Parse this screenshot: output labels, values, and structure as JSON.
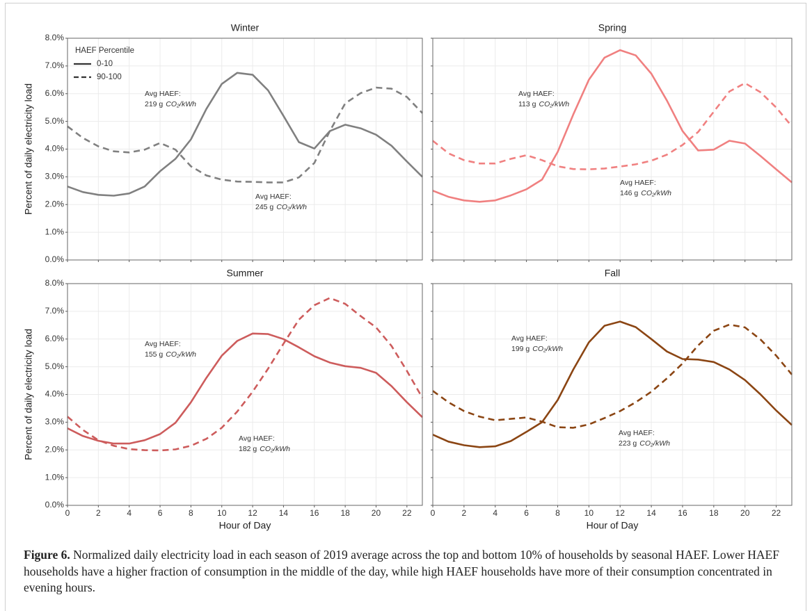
{
  "chart_data": [
    {
      "type": "line",
      "title": "Winter",
      "ylabel": "Percent of daily electricity load",
      "x": [
        0,
        1,
        2,
        3,
        4,
        5,
        6,
        7,
        8,
        9,
        10,
        11,
        12,
        13,
        14,
        15,
        16,
        17,
        18,
        19,
        20,
        21,
        22,
        23
      ],
      "series": [
        {
          "name": "0-10",
          "color": "#808080",
          "dash": "solid",
          "values": [
            2.65,
            2.45,
            2.35,
            2.32,
            2.4,
            2.65,
            3.2,
            3.65,
            4.35,
            5.45,
            6.35,
            6.75,
            6.68,
            6.12,
            5.2,
            4.25,
            4.02,
            4.65,
            4.88,
            4.75,
            4.52,
            4.12,
            3.55,
            3.0
          ]
        },
        {
          "name": "90-100",
          "color": "#808080",
          "dash": "dashed",
          "values": [
            4.82,
            4.4,
            4.1,
            3.92,
            3.88,
            3.98,
            4.22,
            3.98,
            3.38,
            3.05,
            2.9,
            2.83,
            2.82,
            2.8,
            2.8,
            2.98,
            3.5,
            4.65,
            5.65,
            6.02,
            6.22,
            6.18,
            5.88,
            5.3
          ]
        }
      ],
      "legend": {
        "title": "HAEF Percentile",
        "color": "#333333",
        "position": "upper left"
      },
      "annotations": [
        {
          "label": "Avg HAEF:",
          "text": "219 g",
          "unit": "CO₂/kWh"
        },
        {
          "label": "Avg HAEF:",
          "text": "245 g",
          "unit": "CO₂/kWh"
        }
      ],
      "xlim": [
        0,
        23
      ],
      "ylim": [
        0,
        8
      ],
      "xticks": [
        0,
        2,
        4,
        6,
        8,
        10,
        12,
        14,
        16,
        18,
        20,
        22
      ],
      "yticks": [
        {
          "value": 0,
          "label": "0.0%"
        },
        {
          "value": 1,
          "label": "1.0%"
        },
        {
          "value": 2,
          "label": "2.0%"
        },
        {
          "value": 3,
          "label": "3.0%"
        },
        {
          "value": 4,
          "label": "4.0%"
        },
        {
          "value": 5,
          "label": "5.0%"
        },
        {
          "value": 6,
          "label": "6.0%"
        },
        {
          "value": 7,
          "label": "7.0%"
        },
        {
          "value": 8,
          "label": "8.0%"
        }
      ],
      "show_xtick_labels": false,
      "show_ytick_labels": true,
      "grid": true
    },
    {
      "type": "line",
      "title": "Spring",
      "x": [
        0,
        1,
        2,
        3,
        4,
        5,
        6,
        7,
        8,
        9,
        10,
        11,
        12,
        13,
        14,
        15,
        16,
        17,
        18,
        19,
        20,
        21,
        22,
        23
      ],
      "series": [
        {
          "name": "0-10",
          "color": "#f08080",
          "dash": "solid",
          "values": [
            2.5,
            2.28,
            2.15,
            2.1,
            2.15,
            2.33,
            2.55,
            2.9,
            3.9,
            5.25,
            6.5,
            7.3,
            7.57,
            7.38,
            6.72,
            5.75,
            4.65,
            3.95,
            3.98,
            4.3,
            4.2,
            3.75,
            3.27,
            2.8
          ]
        },
        {
          "name": "90-100",
          "color": "#f08080",
          "dash": "dashed",
          "values": [
            4.3,
            3.85,
            3.6,
            3.48,
            3.48,
            3.65,
            3.78,
            3.6,
            3.38,
            3.28,
            3.27,
            3.3,
            3.37,
            3.45,
            3.58,
            3.8,
            4.15,
            4.62,
            5.35,
            6.08,
            6.38,
            6.05,
            5.5,
            4.82
          ]
        }
      ],
      "annotations": [
        {
          "label": "Avg HAEF:",
          "text": "113 g",
          "unit": "CO₂/kWh"
        },
        {
          "label": "Avg HAEF:",
          "text": "146 g",
          "unit": "CO₂/kWh"
        }
      ],
      "xlim": [
        0,
        23
      ],
      "ylim": [
        0,
        8
      ],
      "xticks": [
        0,
        2,
        4,
        6,
        8,
        10,
        12,
        14,
        16,
        18,
        20,
        22
      ],
      "yticks": [
        0,
        1,
        2,
        3,
        4,
        5,
        6,
        7,
        8
      ],
      "show_xtick_labels": false,
      "show_ytick_labels": false,
      "grid": true
    },
    {
      "type": "line",
      "title": "Summer",
      "ylabel": "Percent of daily electricity load",
      "xlabel": "Hour of Day",
      "x": [
        0,
        1,
        2,
        3,
        4,
        5,
        6,
        7,
        8,
        9,
        10,
        11,
        12,
        13,
        14,
        15,
        16,
        17,
        18,
        19,
        20,
        21,
        22,
        23
      ],
      "series": [
        {
          "name": "0-10",
          "color": "#cd5c5c",
          "dash": "solid",
          "values": [
            2.78,
            2.5,
            2.33,
            2.23,
            2.23,
            2.35,
            2.57,
            2.98,
            3.72,
            4.6,
            5.4,
            5.93,
            6.2,
            6.18,
            6.0,
            5.7,
            5.38,
            5.15,
            5.02,
            4.96,
            4.78,
            4.3,
            3.72,
            3.18
          ]
        },
        {
          "name": "90-100",
          "color": "#cd5c5c",
          "dash": "dashed",
          "values": [
            3.2,
            2.72,
            2.35,
            2.15,
            2.03,
            1.99,
            1.98,
            2.02,
            2.15,
            2.4,
            2.8,
            3.38,
            4.1,
            4.93,
            5.83,
            6.7,
            7.22,
            7.48,
            7.27,
            6.83,
            6.42,
            5.75,
            4.85,
            3.88
          ]
        }
      ],
      "annotations": [
        {
          "label": "Avg HAEF:",
          "text": "155 g",
          "unit": "CO₂/kWh"
        },
        {
          "label": "Avg HAEF:",
          "text": "182 g",
          "unit": "CO₂/kWh"
        }
      ],
      "xlim": [
        0,
        23
      ],
      "ylim": [
        0,
        8
      ],
      "xticks": [
        0,
        2,
        4,
        6,
        8,
        10,
        12,
        14,
        16,
        18,
        20,
        22
      ],
      "yticks": [
        {
          "value": 0,
          "label": "0.0%"
        },
        {
          "value": 1,
          "label": "1.0%"
        },
        {
          "value": 2,
          "label": "2.0%"
        },
        {
          "value": 3,
          "label": "3.0%"
        },
        {
          "value": 4,
          "label": "4.0%"
        },
        {
          "value": 5,
          "label": "5.0%"
        },
        {
          "value": 6,
          "label": "6.0%"
        },
        {
          "value": 7,
          "label": "7.0%"
        },
        {
          "value": 8,
          "label": "8.0%"
        }
      ],
      "show_xtick_labels": true,
      "show_ytick_labels": true,
      "grid": true
    },
    {
      "type": "line",
      "title": "Fall",
      "xlabel": "Hour of Day",
      "x": [
        0,
        1,
        2,
        3,
        4,
        5,
        6,
        7,
        8,
        9,
        10,
        11,
        12,
        13,
        14,
        15,
        16,
        17,
        18,
        19,
        20,
        21,
        22,
        23
      ],
      "series": [
        {
          "name": "0-10",
          "color": "#8b4513",
          "dash": "solid",
          "values": [
            2.55,
            2.3,
            2.17,
            2.1,
            2.13,
            2.32,
            2.65,
            3.0,
            3.8,
            4.9,
            5.88,
            6.48,
            6.63,
            6.43,
            6.0,
            5.55,
            5.28,
            5.26,
            5.17,
            4.9,
            4.52,
            4.0,
            3.42,
            2.9
          ]
        },
        {
          "name": "90-100",
          "color": "#8b4513",
          "dash": "dashed",
          "values": [
            4.13,
            3.72,
            3.4,
            3.2,
            3.07,
            3.12,
            3.17,
            3.02,
            2.82,
            2.8,
            2.92,
            3.15,
            3.4,
            3.72,
            4.1,
            4.58,
            5.12,
            5.77,
            6.3,
            6.52,
            6.42,
            5.98,
            5.4,
            4.72
          ]
        }
      ],
      "annotations": [
        {
          "label": "Avg HAEF:",
          "text": "199 g",
          "unit": "CO₂/kWh"
        },
        {
          "label": "Avg HAEF:",
          "text": "223 g",
          "unit": "CO₂/kWh"
        }
      ],
      "xlim": [
        0,
        23
      ],
      "ylim": [
        0,
        8
      ],
      "xticks": [
        0,
        2,
        4,
        6,
        8,
        10,
        12,
        14,
        16,
        18,
        20,
        22
      ],
      "yticks": [
        0,
        1,
        2,
        3,
        4,
        5,
        6,
        7,
        8
      ],
      "show_xtick_labels": true,
      "show_ytick_labels": false,
      "grid": true
    }
  ],
  "caption": {
    "label": "Figure 6.",
    "text": "Normalized daily electricity load in each season of 2019 average across the top and bottom 10% of households by seasonal HAEF. Lower HAEF households have a higher fraction of consumption in the middle of the day, while high HAEF households have more of their consumption concentrated in evening hours."
  }
}
